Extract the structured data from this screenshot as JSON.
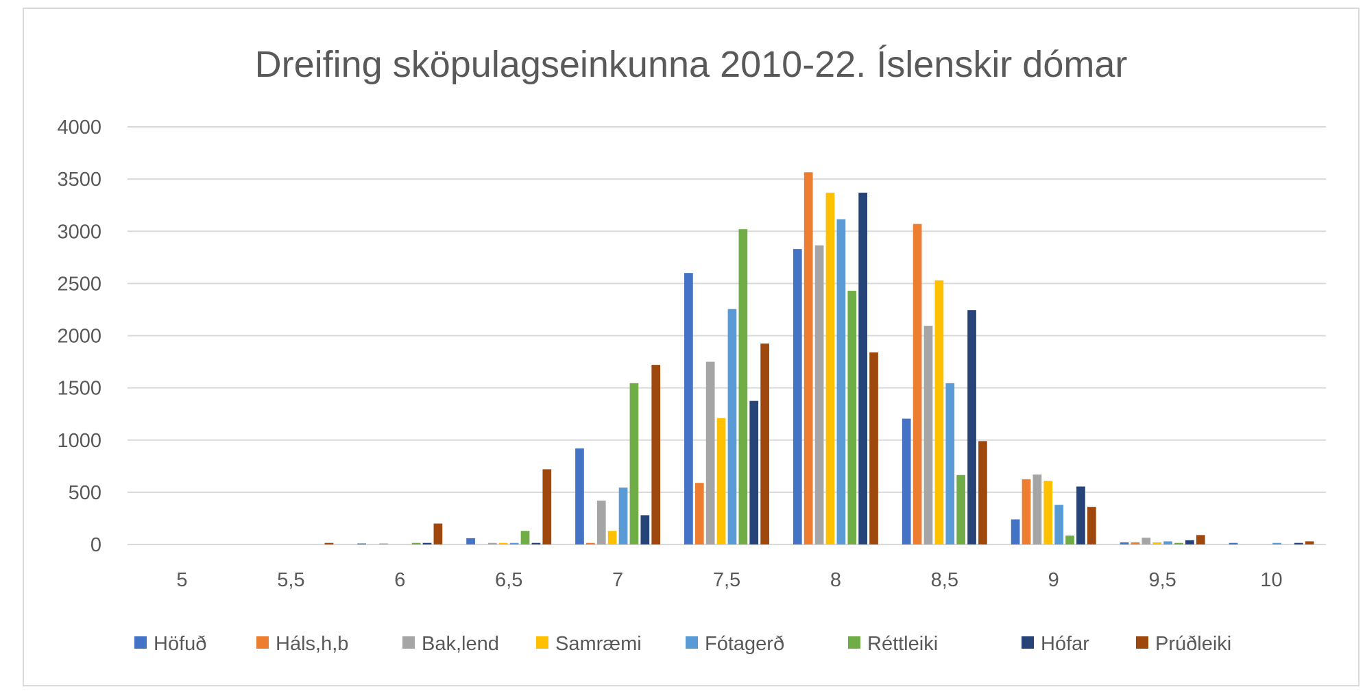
{
  "chart_data": {
    "type": "bar",
    "title": "Dreifing sköpulagseinkunna 2010-22. Íslenskir dómar",
    "xlabel": "",
    "ylabel": "",
    "ylim": [
      0,
      4000
    ],
    "yticks": [
      0,
      500,
      1000,
      1500,
      2000,
      2500,
      3000,
      3500,
      4000
    ],
    "grid": true,
    "legend": "bottom",
    "categories": [
      "5",
      "5,5",
      "6",
      "6,5",
      "7",
      "7,5",
      "8",
      "8,5",
      "9",
      "9,5",
      "10"
    ],
    "series": [
      {
        "name": "Höfuð",
        "color": "#4472C4",
        "values": [
          0,
          0,
          10,
          60,
          920,
          2600,
          2830,
          1205,
          240,
          20,
          15
        ]
      },
      {
        "name": "Háls,h,b",
        "color": "#ED7D31",
        "values": [
          0,
          0,
          0,
          0,
          15,
          590,
          3565,
          3070,
          625,
          20,
          0
        ]
      },
      {
        "name": "Bak,lend",
        "color": "#A5A5A5",
        "values": [
          0,
          0,
          10,
          15,
          420,
          1750,
          2865,
          2095,
          670,
          65,
          0
        ]
      },
      {
        "name": "Samræmi",
        "color": "#FFC000",
        "values": [
          0,
          0,
          0,
          15,
          130,
          1210,
          3370,
          2530,
          610,
          20,
          0
        ]
      },
      {
        "name": "Fótagerð",
        "color": "#5B9BD5",
        "values": [
          0,
          0,
          0,
          15,
          545,
          2255,
          3115,
          1545,
          380,
          30,
          15
        ]
      },
      {
        "name": "Réttleiki",
        "color": "#70AD47",
        "values": [
          0,
          0,
          15,
          130,
          1545,
          3020,
          2430,
          665,
          85,
          15,
          0
        ]
      },
      {
        "name": "Hófar",
        "color": "#264478",
        "values": [
          0,
          0,
          15,
          15,
          280,
          1375,
          3370,
          2245,
          555,
          40,
          15
        ]
      },
      {
        "name": "Prúðleiki",
        "color": "#9E480E",
        "values": [
          0,
          15,
          200,
          720,
          1720,
          1925,
          1840,
          990,
          360,
          90,
          30
        ]
      }
    ]
  }
}
